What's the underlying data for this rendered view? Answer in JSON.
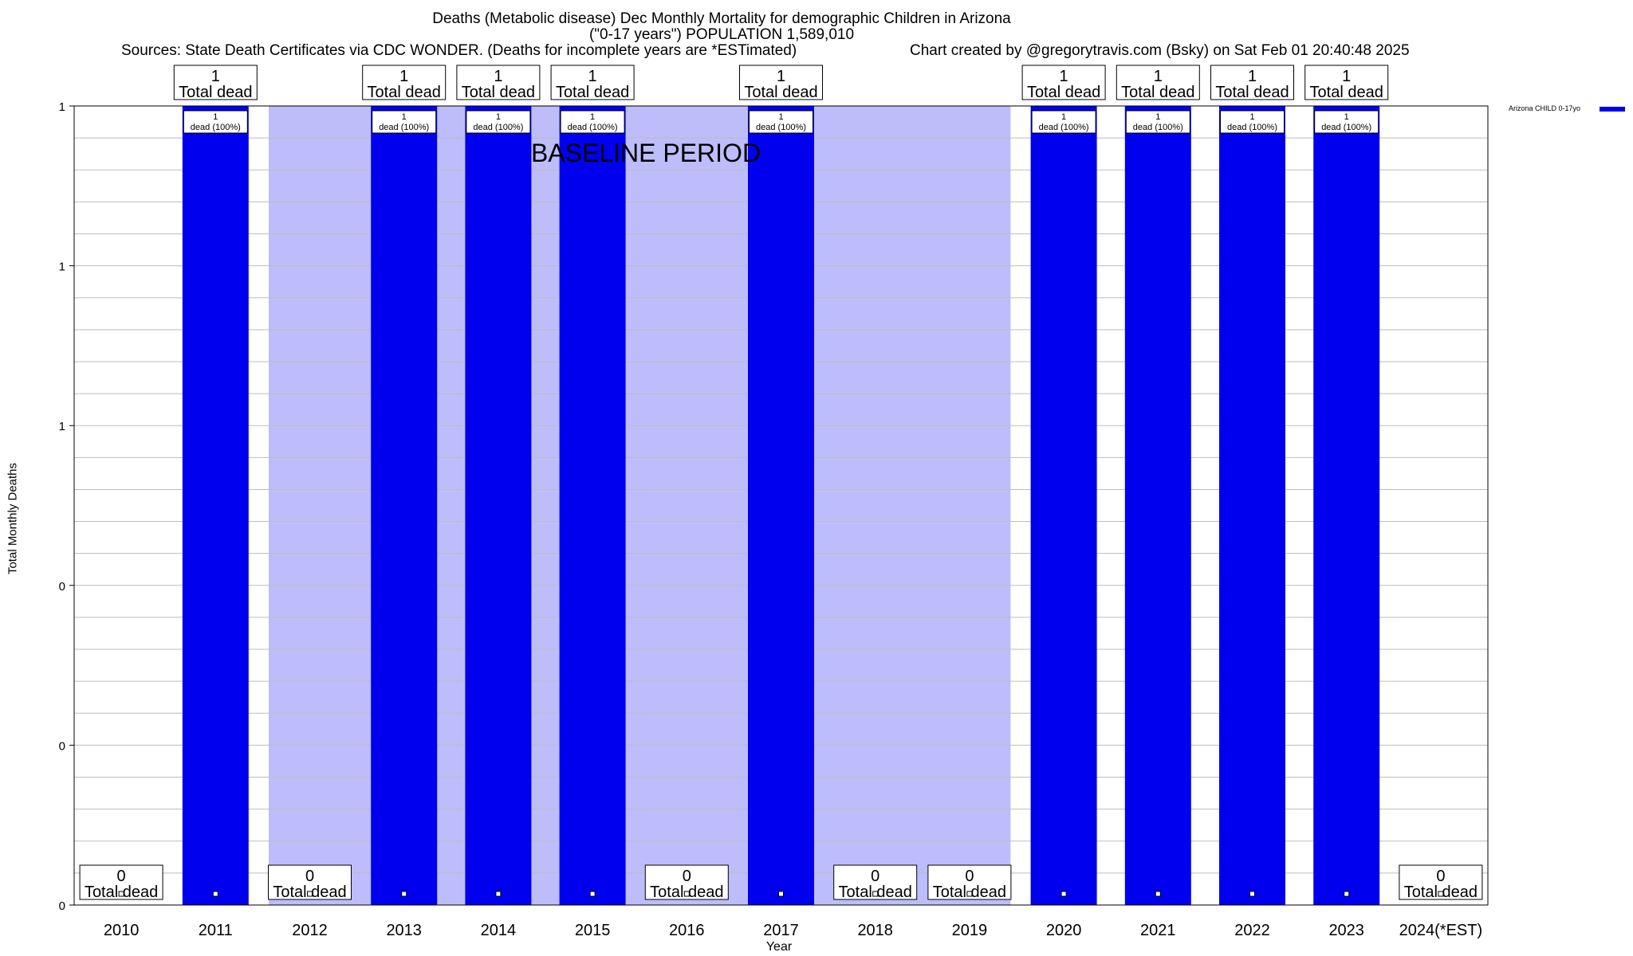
{
  "header": {
    "title_line1": "Deaths (Metabolic disease) Dec Monthly Mortality for demographic Children in Arizona",
    "title_line2": "(\"0-17 years\") POPULATION 1,589,010",
    "sources": "Sources: State Death Certificates via CDC WONDER. (Deaths for incomplete years are *ESTimated)",
    "credit": "Chart created by @gregorytravis.com (Bsky) on Sat Feb 01 20:40:48 2025"
  },
  "chart_data": {
    "type": "bar",
    "title": "Deaths (Metabolic disease) Dec Monthly Mortality for demographic Children in Arizona",
    "xlabel": "Year",
    "ylabel": "Total Monthly Deaths",
    "ylim": [
      0,
      1
    ],
    "y_tick_labels": [
      "0",
      "0",
      "0",
      "1",
      "1",
      "1"
    ],
    "categories": [
      "2010",
      "2011",
      "2012",
      "2013",
      "2014",
      "2015",
      "2016",
      "2017",
      "2018",
      "2019",
      "2020",
      "2021",
      "2022",
      "2023",
      "2024(*EST)"
    ],
    "series": [
      {
        "name": "Arizona CHILD 0-17yo",
        "color": "#0000ee",
        "values": [
          0,
          1,
          0,
          1,
          1,
          1,
          0,
          1,
          0,
          0,
          1,
          1,
          1,
          1,
          0
        ]
      }
    ],
    "top_label_suffix": "Total dead",
    "bar_label_suffix": "dead (100%)",
    "baseline_period": {
      "label": "BASELINE PERIOD",
      "from": "2012",
      "to": "2019",
      "color": "#bdbdfb"
    },
    "grid": true,
    "legend_position": "top-right"
  }
}
